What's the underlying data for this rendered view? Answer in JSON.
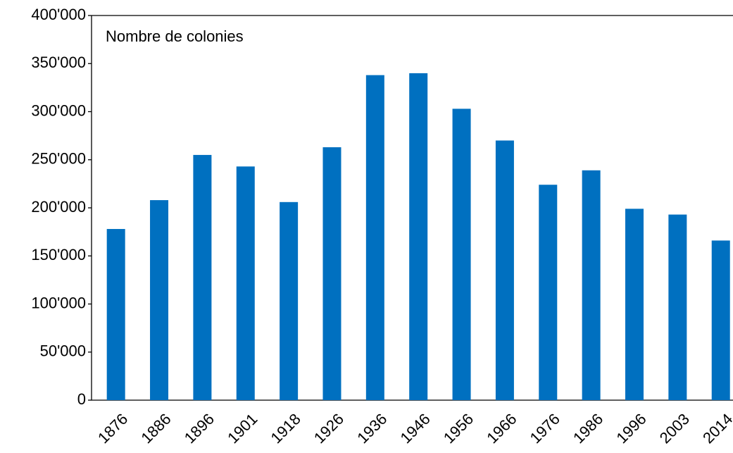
{
  "chart_data": {
    "type": "bar",
    "annotation": "Nombre de colonies",
    "categories": [
      "1876",
      "1886",
      "1896",
      "1901",
      "1918",
      "1926",
      "1936",
      "1946",
      "1956",
      "1966",
      "1976",
      "1986",
      "1996",
      "2003",
      "2014"
    ],
    "values": [
      178000,
      208000,
      255000,
      243000,
      206000,
      263000,
      338000,
      340000,
      303000,
      270000,
      224000,
      239000,
      199000,
      193000,
      166000
    ],
    "color": "#0070c0",
    "ylim": [
      0,
      400000
    ],
    "yticks": [
      0,
      {
        "value": 50000,
        "label": "50'000"
      },
      {
        "value": 100000,
        "label": "100'000"
      },
      {
        "value": 150000,
        "label": "150'000"
      },
      {
        "value": 200000,
        "label": "200'000"
      },
      {
        "value": 250000,
        "label": "250'000"
      },
      {
        "value": 300000,
        "label": "300'000"
      },
      {
        "value": 350000,
        "label": "350'000"
      },
      {
        "value": 400000,
        "label": "400'000"
      }
    ],
    "grid": false
  }
}
